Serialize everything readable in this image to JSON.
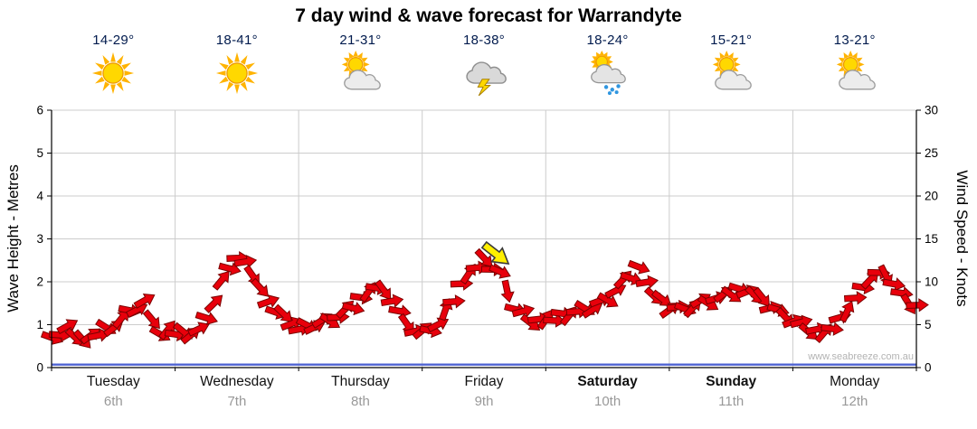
{
  "chart_data": {
    "type": "line",
    "title": "7 day wind & wave forecast for Warrandyte",
    "ylabel_left": "Wave Height - Metres",
    "ylabel_right": "Wind Speed - Knots",
    "ylim_left": [
      0,
      6
    ],
    "ylim_right": [
      0,
      30
    ],
    "left_ticks": [
      "0",
      "1",
      "2",
      "3",
      "4",
      "5",
      "6"
    ],
    "right_ticks": [
      "0",
      "5",
      "10",
      "15",
      "20",
      "25",
      "30"
    ],
    "grid": true,
    "days": [
      {
        "name": "Tuesday",
        "date": "6th",
        "weekend": false
      },
      {
        "name": "Wednesday",
        "date": "7th",
        "weekend": false
      },
      {
        "name": "Thursday",
        "date": "8th",
        "weekend": false
      },
      {
        "name": "Friday",
        "date": "9th",
        "weekend": false
      },
      {
        "name": "Saturday",
        "date": "10th",
        "weekend": true
      },
      {
        "name": "Sunday",
        "date": "11th",
        "weekend": true
      },
      {
        "name": "Monday",
        "date": "12th",
        "weekend": false
      }
    ],
    "forecast": [
      {
        "temps": "14-29°",
        "icon": "sunny"
      },
      {
        "temps": "18-41°",
        "icon": "sunny"
      },
      {
        "temps": "21-31°",
        "icon": "partly-cloudy"
      },
      {
        "temps": "18-38°",
        "icon": "storm"
      },
      {
        "temps": "18-24°",
        "icon": "showers"
      },
      {
        "temps": "15-21°",
        "icon": "partly-cloudy"
      },
      {
        "temps": "13-21°",
        "icon": "partly-cloudy"
      }
    ],
    "series": [
      {
        "name": "Wind Speed",
        "unit": "knots",
        "color": "#e8000b",
        "stroke": "#7a0000",
        "values": [
          3.5,
          4.5,
          3.2,
          4.0,
          4.8,
          6.5,
          7.5,
          4.0,
          4.2,
          3.8,
          5.5,
          10.0,
          13.0,
          11.0,
          7.5,
          6.0,
          4.5,
          5.0,
          5.5,
          6.5,
          8.0,
          9.5,
          8.0,
          5.0,
          4.0,
          5.0,
          8.0,
          11.0,
          12.5,
          11.0,
          7.0,
          5.5,
          5.5,
          6.0,
          6.5,
          7.0,
          8.0,
          10.0,
          11.5,
          8.5,
          7.0,
          6.8,
          7.5,
          8.0,
          8.8,
          9.0,
          8.0,
          6.5,
          5.5,
          4.5,
          4.0,
          5.5,
          8.0,
          10.5,
          11.0,
          8.5,
          7.0
        ]
      },
      {
        "name": "Wave Height",
        "unit": "metres",
        "color": "#4f63d2",
        "constant": 0.07
      }
    ],
    "annotation": {
      "type": "arrow",
      "color": "#ffef00",
      "day_index": 3,
      "day_fraction": 0.6,
      "knots": 13.2,
      "rotation_deg": 38
    },
    "watermark": "www.seabreeze.com.au",
    "colors": {
      "grid": "#cccccc",
      "axis": "#000000",
      "temp_text": "#001a4d",
      "date_text": "#999999",
      "arrow_fill": "#e8000b",
      "arrow_stroke": "#7a0000",
      "wave_line": "#4f63d2",
      "annotation_fill": "#ffef00"
    }
  }
}
